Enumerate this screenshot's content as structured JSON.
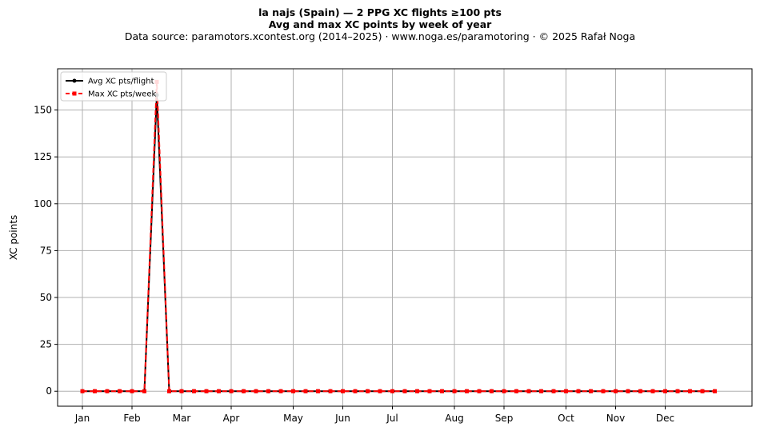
{
  "header": {
    "title_line1": "la najs (Spain)  —  2 PPG XC flights ≥100 pts",
    "title_line2": "Avg and max XC points by week of year",
    "subtitle": "Data source: paramotors.xcontest.org (2014–2025)  ·  www.noga.es/paramotoring  ·  © 2025 Rafał Noga"
  },
  "chart_data": {
    "type": "line",
    "title": "la najs (Spain)  —  2 PPG XC flights ≥100 pts",
    "subtitle": "Avg and max XC points by week of year",
    "xlabel": "",
    "ylabel": "XC points",
    "xlim": [
      -1,
      55
    ],
    "ylim": [
      -8,
      172
    ],
    "yticks": [
      0,
      25,
      50,
      75,
      100,
      125,
      150
    ],
    "xticks": [
      {
        "label": "Jan",
        "week": 1
      },
      {
        "label": "Feb",
        "week": 5
      },
      {
        "label": "Mar",
        "week": 9
      },
      {
        "label": "Apr",
        "week": 13
      },
      {
        "label": "May",
        "week": 18
      },
      {
        "label": "Jun",
        "week": 22
      },
      {
        "label": "Jul",
        "week": 26
      },
      {
        "label": "Aug",
        "week": 31
      },
      {
        "label": "Sep",
        "week": 35
      },
      {
        "label": "Oct",
        "week": 40
      },
      {
        "label": "Nov",
        "week": 44
      },
      {
        "label": "Dec",
        "week": 48
      }
    ],
    "grid": true,
    "legend_position": "upper-left",
    "x": [
      1,
      2,
      3,
      4,
      5,
      6,
      7,
      8,
      9,
      10,
      11,
      12,
      13,
      14,
      15,
      16,
      17,
      18,
      19,
      20,
      21,
      22,
      23,
      24,
      25,
      26,
      27,
      28,
      29,
      30,
      31,
      32,
      33,
      34,
      35,
      36,
      37,
      38,
      39,
      40,
      41,
      42,
      43,
      44,
      45,
      46,
      47,
      48,
      49,
      50,
      51,
      52
    ],
    "series": [
      {
        "name": "Avg XC pts/flight",
        "color": "#000000",
        "style": "solid",
        "marker": "circle",
        "values": [
          0,
          0,
          0,
          0,
          0,
          0,
          158,
          0,
          0,
          0,
          0,
          0,
          0,
          0,
          0,
          0,
          0,
          0,
          0,
          0,
          0,
          0,
          0,
          0,
          0,
          0,
          0,
          0,
          0,
          0,
          0,
          0,
          0,
          0,
          0,
          0,
          0,
          0,
          0,
          0,
          0,
          0,
          0,
          0,
          0,
          0,
          0,
          0,
          0,
          0,
          0,
          0
        ]
      },
      {
        "name": "Max XC pts/week",
        "color": "#ff0000",
        "style": "dashed",
        "marker": "square",
        "values": [
          0,
          0,
          0,
          0,
          0,
          0,
          165,
          0,
          0,
          0,
          0,
          0,
          0,
          0,
          0,
          0,
          0,
          0,
          0,
          0,
          0,
          0,
          0,
          0,
          0,
          0,
          0,
          0,
          0,
          0,
          0,
          0,
          0,
          0,
          0,
          0,
          0,
          0,
          0,
          0,
          0,
          0,
          0,
          0,
          0,
          0,
          0,
          0,
          0,
          0,
          0,
          0
        ]
      }
    ]
  }
}
